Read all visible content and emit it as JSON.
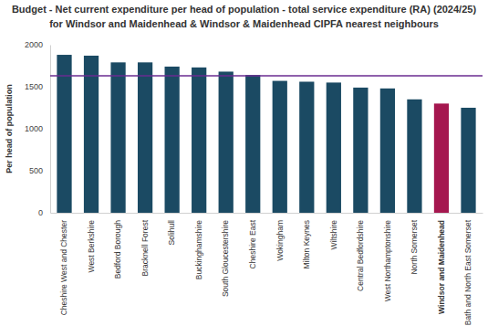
{
  "chart_data": {
    "type": "bar",
    "title": "Budget - Net current expenditure per head of population - total service expenditure (RA) (2024/25) for Windsor and Maidenhead & Windsor & Maidenhead CIPFA nearest neighbours",
    "y_label": "Per head of population",
    "categories": [
      "Cheshire West and Chester",
      "West Berkshire",
      "Bedford Borough",
      "Bracknell Forest",
      "Solihull",
      "Buckinghamshire",
      "South Gloucestershire",
      "Cheshire East",
      "Wokingham",
      "Milton Keynes",
      "Wiltshire",
      "Central Bedfordshire",
      "West Northamptonshire",
      "North Somerset",
      "Windsor and Maidenhead",
      "Bath and North East Somerset"
    ],
    "values": [
      1880,
      1870,
      1790,
      1790,
      1740,
      1730,
      1680,
      1640,
      1570,
      1560,
      1550,
      1490,
      1480,
      1350,
      1300,
      1250
    ],
    "colors": [
      "#1b4a63",
      "#1b4a63",
      "#1b4a63",
      "#1b4a63",
      "#1b4a63",
      "#1b4a63",
      "#1b4a63",
      "#1b4a63",
      "#1b4a63",
      "#1b4a63",
      "#1b4a63",
      "#1b4a63",
      "#1b4a63",
      "#1b4a63",
      "#a5174f",
      "#1b4a63"
    ],
    "reference_line": {
      "value": 1630,
      "color": "#6a2c91"
    },
    "ylim": [
      0,
      2000
    ],
    "yticks": [
      0,
      500,
      1000,
      1500,
      2000
    ],
    "grid": false
  }
}
